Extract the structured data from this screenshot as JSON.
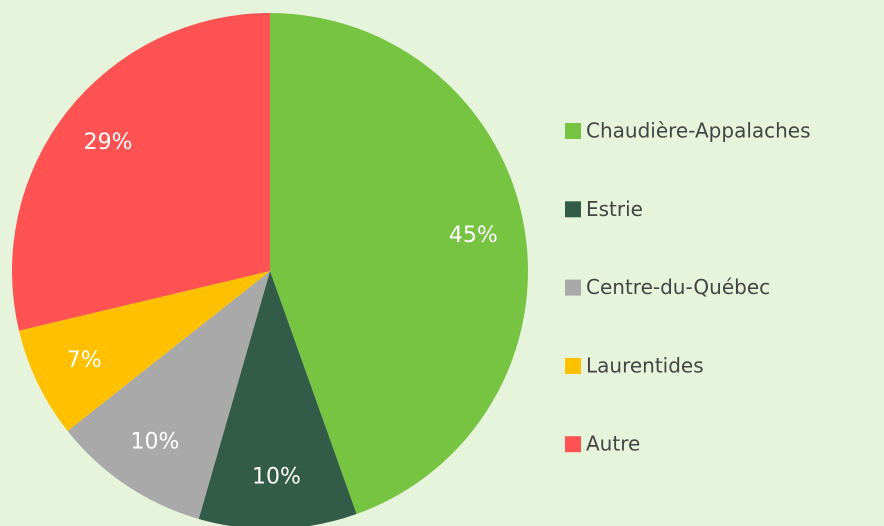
{
  "chart_data": {
    "type": "pie",
    "categories": [
      "Chaudière-Appalaches",
      "Estrie",
      "Centre-du-Québec",
      "Laurentides",
      "Autre"
    ],
    "values": [
      45,
      10,
      10,
      7,
      29
    ],
    "value_labels": [
      "45%",
      "10%",
      "10%",
      "7%",
      "29%"
    ],
    "colors": [
      "#76c442",
      "#335c48",
      "#a9a9a9",
      "#ffc000",
      "#ff5252"
    ],
    "legend": "right"
  }
}
